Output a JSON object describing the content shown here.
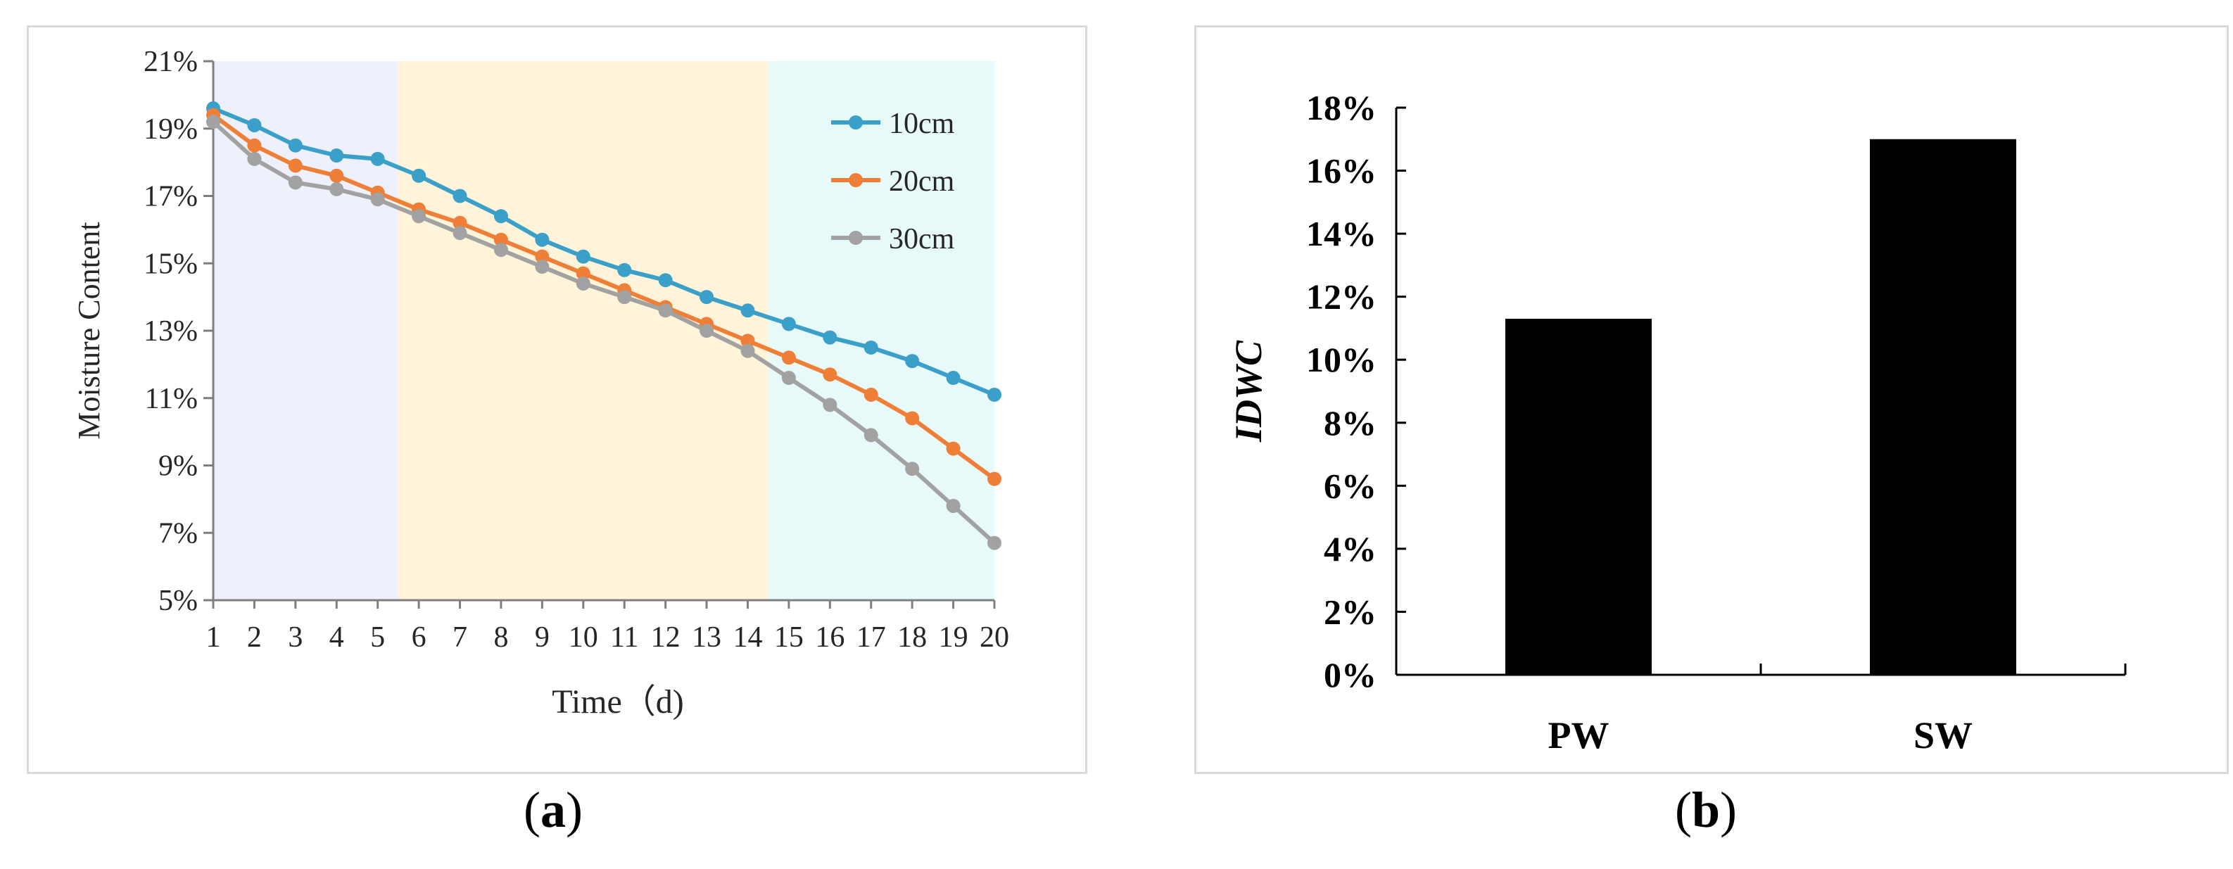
{
  "chart_data": [
    {
      "type": "line",
      "title": "",
      "xlabel": "Time（d)",
      "ylabel": "Moisture Content",
      "x": [
        1,
        2,
        3,
        4,
        5,
        6,
        7,
        8,
        9,
        10,
        11,
        12,
        13,
        14,
        15,
        16,
        17,
        18,
        19,
        20
      ],
      "xticks": [
        "1",
        "2",
        "3",
        "4",
        "5",
        "6",
        "7",
        "8",
        "9",
        "10",
        "11",
        "12",
        "13",
        "14",
        "15",
        "16",
        "17",
        "18",
        "19",
        "20"
      ],
      "ylim": [
        0.05,
        0.21
      ],
      "yticks": [
        0.05,
        0.07,
        0.09,
        0.11,
        0.13,
        0.15,
        0.17,
        0.19,
        0.21
      ],
      "ytick_labels": [
        "5%",
        "7%",
        "9%",
        "11%",
        "13%",
        "15%",
        "17%",
        "19%",
        "21%"
      ],
      "grid": false,
      "legend_position": "top-right",
      "background_bands": [
        {
          "from": 0.5,
          "to": 5.5,
          "color": "#eef1fb"
        },
        {
          "from": 5.5,
          "to": 14.5,
          "color": "#fff4d9"
        },
        {
          "from": 14.5,
          "to": 20.5,
          "color": "#e8f9f9"
        }
      ],
      "series": [
        {
          "name": "10cm",
          "color": "#3a9fc9",
          "values": [
            0.196,
            0.191,
            0.185,
            0.182,
            0.181,
            0.176,
            0.17,
            0.164,
            0.157,
            0.152,
            0.148,
            0.145,
            0.14,
            0.136,
            0.132,
            0.128,
            0.125,
            0.121,
            0.116,
            0.111
          ]
        },
        {
          "name": "20cm",
          "color": "#ef7f36",
          "values": [
            0.194,
            0.185,
            0.179,
            0.176,
            0.171,
            0.166,
            0.162,
            0.157,
            0.152,
            0.147,
            0.142,
            0.137,
            0.132,
            0.127,
            0.122,
            0.117,
            0.111,
            0.104,
            0.095,
            0.086
          ]
        },
        {
          "name": "30cm",
          "color": "#a2a2a2",
          "values": [
            0.192,
            0.181,
            0.174,
            0.172,
            0.169,
            0.164,
            0.159,
            0.154,
            0.149,
            0.144,
            0.14,
            0.136,
            0.13,
            0.124,
            0.116,
            0.108,
            0.099,
            0.089,
            0.078,
            0.067
          ]
        }
      ]
    },
    {
      "type": "bar",
      "title": "",
      "xlabel": "",
      "ylabel": "IDWC",
      "categories": [
        "PW",
        "SW"
      ],
      "values": [
        0.113,
        0.17
      ],
      "ylim": [
        0,
        0.18
      ],
      "yticks": [
        0,
        0.02,
        0.04,
        0.06,
        0.08,
        0.1,
        0.12,
        0.14,
        0.16,
        0.18
      ],
      "ytick_labels": [
        "0%",
        "2%",
        "4%",
        "6%",
        "8%",
        "10%",
        "12%",
        "14%",
        "16%",
        "18%"
      ],
      "bar_color": "#000000",
      "grid": false
    }
  ],
  "captions": [
    "(a)",
    "(b)"
  ],
  "caption_letters": [
    "a",
    "b"
  ]
}
